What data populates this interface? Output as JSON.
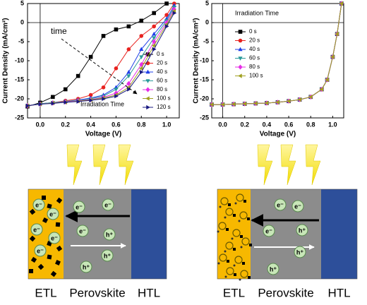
{
  "chart_data": [
    {
      "type": "line",
      "xlabel": "Voltage (V)",
      "ylabel": "Current Density (mA/cm²)",
      "xlim": [
        -0.1,
        1.1
      ],
      "xticks": [
        {
          "value": 0,
          "label": "0.0"
        },
        0.2,
        0.4,
        0.6,
        0.8,
        {
          "value": 1,
          "label": "1.0"
        }
      ],
      "ylim": [
        -25,
        5
      ],
      "yticks": [
        -25,
        -20,
        -15,
        -10,
        -5,
        0,
        5
      ],
      "legend": "lower right",
      "annotations": [
        "time",
        "Irradiation Time"
      ],
      "x": [
        -0.1,
        0,
        0.1,
        0.2,
        0.3,
        0.4,
        0.5,
        0.6,
        0.7,
        0.8,
        0.9,
        1.0,
        1.06
      ],
      "series": [
        {
          "name": "0 s",
          "color": "#000000",
          "values": [
            -22,
            -21,
            -19.5,
            -17.5,
            -14,
            -9,
            -3.5,
            -1.8,
            -1,
            0.5,
            2.5,
            5,
            null
          ]
        },
        {
          "name": "20 s",
          "color": "#e8221f",
          "values": [
            -21.8,
            -21.3,
            -21,
            -20.5,
            -20,
            -19,
            -17,
            -12,
            -7,
            -3.5,
            -1,
            2,
            5
          ]
        },
        {
          "name": "40 s",
          "color": "#1f3fe8",
          "values": [
            -21.8,
            -21.3,
            -21,
            -20.7,
            -20.3,
            -19.8,
            -19,
            -17,
            -13,
            -7,
            -3,
            1,
            4.5
          ]
        },
        {
          "name": "60 s",
          "color": "#2a9a9a",
          "values": [
            -21.8,
            -21.3,
            -21,
            -20.7,
            -20.4,
            -20,
            -19.3,
            -17.5,
            -14,
            -9,
            -4,
            0.5,
            4
          ]
        },
        {
          "name": "80 s",
          "color": "#e62ee6",
          "values": [
            -21.8,
            -21.4,
            -21.1,
            -20.8,
            -20.5,
            -20.2,
            -19.6,
            -18.5,
            -16,
            -11,
            -5,
            0,
            3.5
          ]
        },
        {
          "name": "100 s",
          "color": "#a0a020",
          "values": [
            -21.8,
            -21.4,
            -21.1,
            -20.9,
            -20.6,
            -20.3,
            -19.8,
            -19,
            -17,
            -12,
            -6,
            -0.5,
            3
          ]
        },
        {
          "name": "120 s",
          "color": "#1a1a80",
          "values": [
            -21.8,
            -21.4,
            -21.2,
            -20.9,
            -20.7,
            -20.4,
            -20,
            -19.3,
            -17.5,
            -13,
            -7,
            -1,
            2.5
          ]
        }
      ]
    },
    {
      "type": "line",
      "xlabel": "Voltage (V)",
      "ylabel": "Current Density (mA/cm²)",
      "xlim": [
        -0.1,
        1.1
      ],
      "xticks": [
        {
          "value": 0,
          "label": "0.0"
        },
        0.2,
        0.4,
        0.6,
        0.8,
        {
          "value": 1,
          "label": "1.0"
        }
      ],
      "ylim": [
        -25,
        5
      ],
      "yticks": [
        -25,
        -20,
        -15,
        -10,
        -5,
        0,
        5
      ],
      "legend": "upper left",
      "annotations": [
        "Irradiation Time"
      ],
      "x": [
        -0.1,
        0,
        0.1,
        0.2,
        0.3,
        0.4,
        0.5,
        0.6,
        0.7,
        0.8,
        0.9,
        0.95,
        1.0,
        1.04,
        1.08
      ],
      "series": [
        {
          "name": "0 s",
          "color": "#000000",
          "values": [
            -21.5,
            -21.5,
            -21.4,
            -21.3,
            -21.2,
            -21.1,
            -20.9,
            -20.6,
            -20.2,
            -19.5,
            -17.5,
            -15,
            -9,
            -3,
            5
          ]
        },
        {
          "name": "20 s",
          "color": "#e8221f",
          "values": [
            -21.5,
            -21.5,
            -21.4,
            -21.3,
            -21.2,
            -21.1,
            -20.9,
            -20.6,
            -20.2,
            -19.5,
            -17.5,
            -15,
            -9,
            -3,
            5
          ]
        },
        {
          "name": "40 s",
          "color": "#1f3fe8",
          "values": [
            -21.5,
            -21.5,
            -21.4,
            -21.3,
            -21.2,
            -21.1,
            -20.9,
            -20.6,
            -20.2,
            -19.5,
            -17.5,
            -15,
            -9,
            -3,
            5
          ]
        },
        {
          "name": "60 s",
          "color": "#2a9a9a",
          "values": [
            -21.5,
            -21.5,
            -21.4,
            -21.3,
            -21.2,
            -21.1,
            -20.9,
            -20.6,
            -20.2,
            -19.5,
            -17.5,
            -15,
            -9,
            -3,
            5
          ]
        },
        {
          "name": "80 s",
          "color": "#e62ee6",
          "values": [
            -21.5,
            -21.5,
            -21.4,
            -21.3,
            -21.2,
            -21.1,
            -20.9,
            -20.6,
            -20.2,
            -19.5,
            -17.5,
            -15,
            -9,
            -3,
            5
          ]
        },
        {
          "name": "100 s",
          "color": "#a0a020",
          "values": [
            -21.5,
            -21.5,
            -21.4,
            -21.3,
            -21.2,
            -21.1,
            -20.9,
            -20.6,
            -20.2,
            -19.5,
            -17.5,
            -15,
            -9,
            -3,
            5
          ]
        }
      ]
    }
  ],
  "diagrams": [
    {
      "layers": [
        "ETL",
        "Perovskite",
        "HTL"
      ],
      "electron": "e⁻",
      "hole": "h⁺"
    },
    {
      "layers": [
        "ETL",
        "Perovskite",
        "HTL"
      ],
      "electron": "e⁻",
      "hole": "h⁺"
    }
  ]
}
